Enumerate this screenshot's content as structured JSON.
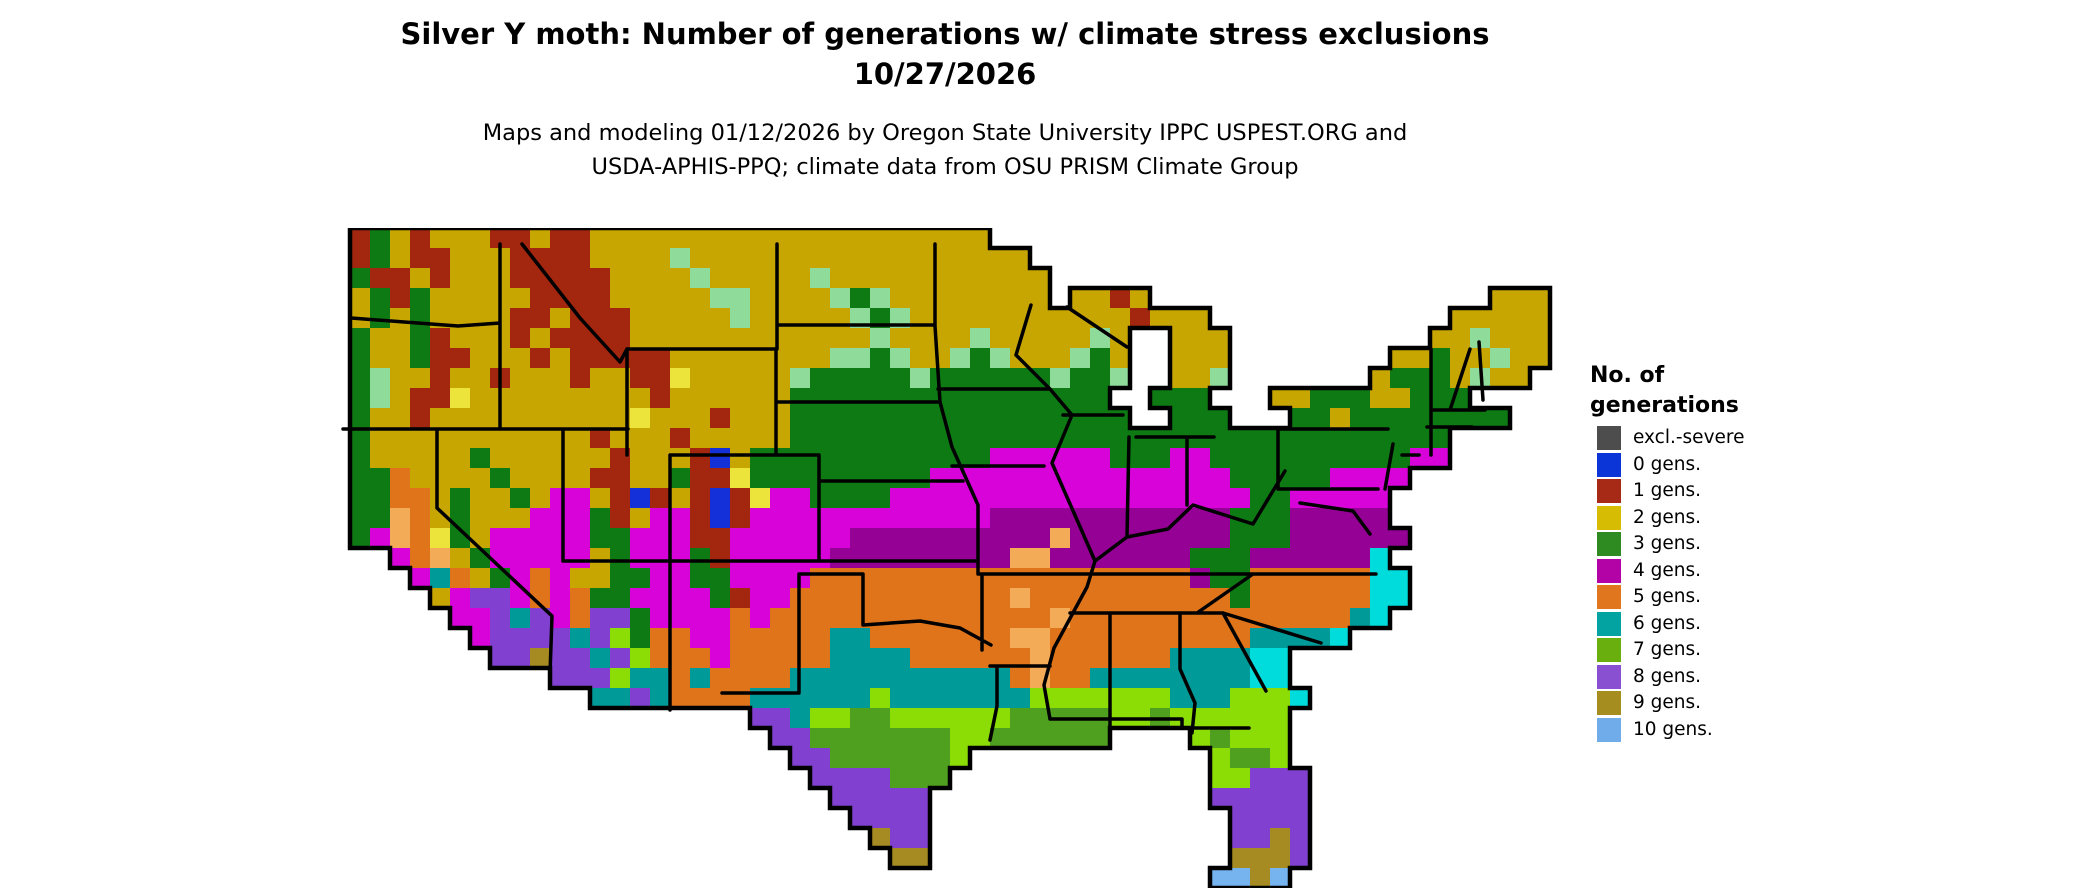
{
  "title": {
    "line1": "Silver Y moth: Number of generations w/ climate stress exclusions",
    "line2": "10/27/2026"
  },
  "subtitle": {
    "line1": "Maps and modeling 01/12/2026 by Oregon State University IPPC USPEST.ORG and",
    "line2": "USDA-APHIS-PPQ; climate data from OSU PRISM Climate Group"
  },
  "legend": {
    "title_line1": "No. of",
    "title_line2": "generations",
    "items": [
      {
        "label": "excl.-severe",
        "color": "#4d4d4d"
      },
      {
        "label": "0 gens.",
        "color": "#0b35d6"
      },
      {
        "label": "1 gens.",
        "color": "#a62a16"
      },
      {
        "label": "2 gens.",
        "color": "#d6bd04"
      },
      {
        "label": "3 gens.",
        "color": "#2e8b22"
      },
      {
        "label": "4 gens.",
        "color": "#b303a7"
      },
      {
        "label": "5 gens.",
        "color": "#e0761d"
      },
      {
        "label": "6 gens.",
        "color": "#02a3a0"
      },
      {
        "label": "7 gens.",
        "color": "#69b00e"
      },
      {
        "label": "8 gens.",
        "color": "#8951d2"
      },
      {
        "label": "9 gens.",
        "color": "#a58d20"
      },
      {
        "label": "10 gens.",
        "color": "#70acea"
      }
    ]
  },
  "map": {
    "cols": 62,
    "rows": 33,
    "cell_size": 20,
    "outline_color": "#000000",
    "palette": {
      "y": "#c8a602",
      "Y": "#ece43a",
      "r": "#a3260f",
      "B": "#1430d8",
      "g": "#0e7a14",
      "G": "#8fdc9a",
      "m": "#d803d8",
      "p": "#950095",
      "o": "#e0741a",
      "O": "#f3ab57",
      "t": "#009a98",
      "c": "#00dcdc",
      "l": "#8cdc05",
      "v": "#4fa01e",
      "u": "#8140cf",
      "k": "#a68b22",
      "b": "#76b4ef"
    },
    "grid": [
      ".rgyryyyrryrryyyyyyyyyyyyyyyyyyyy.............................",
      ".rgyrryyyrrrryyyyGyyyyyyyyyyyyyyyyy...........................",
      ".grryryyyrrrrryyyyGyyyyyGyyyyyyyyyyy..........................",
      ".ygrgyyyyyrrrryyyyyGGyyyyGgGyyyyyyyy.yyry.................yyy.",
      ".ygygyyyyrryrrryyyyyGyyyyyGgGyyyyyyyyyyyryyy............yyyyy.",
      ".gyygryyyryrrrryyyyyyyyyyyyGyyyyGyyyyyGy..yyy..........yyGyyy.",
      ".gyygrryyyryrrrrryyyyyyyyGGgGyyGgGyyyGgy..yyy........yygyyGyy.",
      ".gGyyryyryyyryyrrYyyyyyGgggggGggggggGggG..yyG.......ygggyGyy..",
      ".gGyrrYyyyyyyyyyryyyyyygggggggggggggggg..ggg...yygggyyggg....",
      ".gyyryyyyyyyyyyYyyyryyyggggggggggggggggg..ggg...ggygggggggg...",
      ".gyyyyyyyyyyyryyyryyyyyggggggggggggggggggggggggggggggggg....",
      ".gyyyyygyyyyyyryyyrByggggggggggggmmmmmmgggmmggggggggggmm.......",
      ".ggoyyyygyyyyrryygrrYgggggggggmmmmmmmmmmmmmmmgggggmmmm........",
      ".ggooygyygymmyrBryrBrYmmggggmmmmmmmmmmmmmmmmmmggmmmmm.........",
      ".ggOoygyyymmmgrymmrBrmmmmmmmmmmmmppppppppppppgggppppp.........",
      ".gmOoYgymmmmmggmmmrrmmmmmmppppppppppOppppppppgggpppppp.........",
      "...moOygmmmmmygmmmgrmmmmmpppppppppOOpppppppgggppppppc.........",
      "....mtoygmomyyggmmggmmmmooooooooooooooooooopggoooooocc........",
      ".....ymuumomoggmmmmgrmmoooooooooooOoooooooooogoooooocc.........",
      "......mmutumouugmmmmomooooooooooooooOooooooooooooootc...........",
      ".......muuuutulgoommooooottoooooooOOoooooooooottttc............",
      "........uukuutulooomooooottttooooooOoooooottttcc.............",
      "...........uuulttotooootttttttttttoOoottttttttcc..............",
      ".............ttutoooottttttltttttttllllllltttlllc...............",
      ".....................uutllvvllllllvvvvvllvllllll..............",
      "......................uuvvvvvvvllvvvvvv....lvlll..............",
      ".......................uuvvvvvvl............lvvl..............",
      "........................uuuuvvv.............lluuu.............",
      ".........................uuuuu..............uuuuu.............",
      "..........................uuuu...............uuuu.............",
      "...........................kuu...............uuku.............",
      "............................kk...............kkku.............",
      "............................................bbkb.............."
    ],
    "borders": [
      [
        [
          21,
          90
        ],
        [
          128,
          98
        ],
        [
          170,
          95
        ]
      ],
      [
        [
          13,
          201
        ],
        [
          298,
          201
        ]
      ],
      [
        [
          170,
          16
        ],
        [
          170,
          201
        ]
      ],
      [
        [
          107,
          201
        ],
        [
          107,
          280
        ],
        [
          222,
          388
        ],
        [
          220,
          446
        ]
      ],
      [
        [
          233,
          201
        ],
        [
          233,
          333
        ]
      ],
      [
        [
          192,
          16
        ],
        [
          250,
          90
        ],
        [
          290,
          134
        ],
        [
          297,
          121
        ]
      ],
      [
        [
          297,
          121
        ],
        [
          446,
          121
        ]
      ],
      [
        [
          297,
          121
        ],
        [
          297,
          227
        ]
      ],
      [
        [
          447,
          16
        ],
        [
          447,
          121
        ]
      ],
      [
        [
          446,
          121
        ],
        [
          446,
          227
        ]
      ],
      [
        [
          340,
          227
        ],
        [
          489,
          227
        ]
      ],
      [
        [
          340,
          227
        ],
        [
          340,
          333
        ]
      ],
      [
        [
          233,
          333
        ],
        [
          648,
          333
        ]
      ],
      [
        [
          340,
          333
        ],
        [
          340,
          482
        ]
      ],
      [
        [
          489,
          227
        ],
        [
          489,
          333
        ]
      ],
      [
        [
          469,
          346
        ],
        [
          469,
          465
        ],
        [
          392,
          465
        ]
      ],
      [
        [
          469,
          346
        ],
        [
          533,
          346
        ]
      ],
      [
        [
          533,
          346
        ],
        [
          533,
          397
        ]
      ],
      [
        [
          533,
          397
        ],
        [
          590,
          393
        ],
        [
          630,
          400
        ],
        [
          661,
          417
        ]
      ],
      [
        [
          447,
          97
        ],
        [
          605,
          97
        ]
      ],
      [
        [
          447,
          174
        ],
        [
          610,
          174
        ]
      ],
      [
        [
          489,
          253
        ],
        [
          633,
          253
        ]
      ],
      [
        [
          605,
          16
        ],
        [
          605,
          98
        ],
        [
          610,
          174
        ]
      ],
      [
        [
          608,
          161
        ],
        [
          720,
          161
        ]
      ],
      [
        [
          622,
          238
        ],
        [
          714,
          238
        ]
      ],
      [
        [
          610,
          174
        ],
        [
          622,
          219
        ],
        [
          648,
          277
        ],
        [
          648,
          346
        ]
      ],
      [
        [
          686,
          127
        ],
        [
          720,
          161
        ],
        [
          742,
          187
        ],
        [
          722,
          235
        ],
        [
          744,
          285
        ],
        [
          765,
          333
        ],
        [
          757,
          359
        ],
        [
          744,
          383
        ],
        [
          724,
          420
        ],
        [
          714,
          457
        ],
        [
          720,
          491
        ]
      ],
      [
        [
          701,
          77
        ],
        [
          686,
          127
        ]
      ],
      [
        [
          737,
          79
        ],
        [
          797,
          119
        ]
      ],
      [
        [
          733,
          187
        ],
        [
          793,
          187
        ]
      ],
      [
        [
          806,
          209
        ],
        [
          884,
          209
        ]
      ],
      [
        [
          799,
          209
        ],
        [
          797,
          309
        ]
      ],
      [
        [
          857,
          209
        ],
        [
          857,
          277
        ]
      ],
      [
        [
          955,
          243
        ],
        [
          923,
          296
        ],
        [
          863,
          277
        ],
        [
          838,
          301
        ],
        [
          797,
          309
        ],
        [
          765,
          333
        ]
      ],
      [
        [
          648,
          346
        ],
        [
          1046,
          346
        ]
      ],
      [
        [
          652,
          346
        ],
        [
          652,
          422
        ]
      ],
      [
        [
          660,
          438
        ],
        [
          720,
          438
        ]
      ],
      [
        [
          667,
          438
        ],
        [
          667,
          478
        ],
        [
          660,
          512
        ]
      ],
      [
        [
          740,
          385
        ],
        [
          893,
          385
        ]
      ],
      [
        [
          893,
          385
        ],
        [
          991,
          415
        ]
      ],
      [
        [
          867,
          385
        ],
        [
          923,
          346
        ]
      ],
      [
        [
          893,
          385
        ],
        [
          936,
          463
        ]
      ],
      [
        [
          780,
          385
        ],
        [
          780,
          512
        ]
      ],
      [
        [
          850,
          385
        ],
        [
          850,
          441
        ],
        [
          865,
          475
        ],
        [
          862,
          505
        ]
      ],
      [
        [
          720,
          491
        ],
        [
          852,
          491
        ],
        [
          852,
          500
        ]
      ],
      [
        [
          852,
          500
        ],
        [
          919,
          500
        ]
      ],
      [
        [
          948,
          201
        ],
        [
          1058,
          201
        ]
      ],
      [
        [
          948,
          201
        ],
        [
          948,
          261
        ]
      ],
      [
        [
          948,
          261
        ],
        [
          1048,
          261
        ]
      ],
      [
        [
          970,
          275
        ],
        [
          1023,
          283
        ],
        [
          1040,
          306
        ]
      ],
      [
        [
          1101,
          121
        ],
        [
          1101,
          227
        ]
      ],
      [
        [
          1140,
          121
        ],
        [
          1120,
          182
        ]
      ],
      [
        [
          1102,
          182
        ],
        [
          1155,
          182
        ]
      ],
      [
        [
          1097,
          199
        ],
        [
          1142,
          199
        ]
      ],
      [
        [
          1153,
          172
        ],
        [
          1149,
          114
        ]
      ],
      [
        [
          1063,
          216
        ],
        [
          1055,
          261
        ]
      ],
      [
        [
          1072,
          227
        ],
        [
          1089,
          227
        ]
      ]
    ]
  }
}
